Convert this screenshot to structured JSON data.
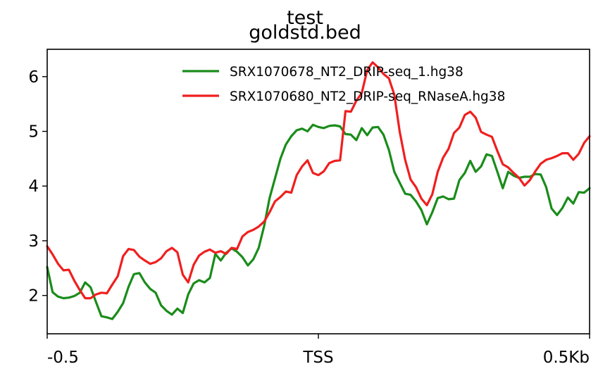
{
  "header": {
    "title": "test",
    "subtitle": "goldstd.bed"
  },
  "colors": {
    "series_1": "#1a8c1a",
    "series_2": "#f01f1f"
  },
  "chart_data": {
    "type": "line",
    "title": "test",
    "subtitle": "goldstd.bed",
    "xlabel": "",
    "ylabel": "",
    "xlim": [
      -0.5,
      0.5
    ],
    "ylim": [
      1.3,
      6.5
    ],
    "xticks": [
      {
        "value": -0.5,
        "label": "-0.5"
      },
      {
        "value": 0.0,
        "label": "TSS"
      },
      {
        "value": 0.5,
        "label": "0.5Kb"
      }
    ],
    "yticks": [
      2,
      3,
      4,
      5,
      6
    ],
    "grid": false,
    "legend": "top-right",
    "series": [
      {
        "name": "SRX1070678_NT2_DRIP-seq_1.hg38",
        "color": "#1a8c1a",
        "x": [
          -0.5,
          -0.49,
          -0.48,
          -0.47,
          -0.46,
          -0.45,
          -0.44,
          -0.43,
          -0.42,
          -0.41,
          -0.4,
          -0.39,
          -0.38,
          -0.37,
          -0.36,
          -0.35,
          -0.34,
          -0.33,
          -0.32,
          -0.31,
          -0.3,
          -0.29,
          -0.28,
          -0.27,
          -0.26,
          -0.25,
          -0.24,
          -0.23,
          -0.22,
          -0.21,
          -0.2,
          -0.19,
          -0.18,
          -0.17,
          -0.16,
          -0.15,
          -0.14,
          -0.13,
          -0.12,
          -0.11,
          -0.1,
          -0.09,
          -0.08,
          -0.07,
          -0.06,
          -0.05,
          -0.04,
          -0.03,
          -0.02,
          -0.01,
          0.0,
          0.01,
          0.02,
          0.03,
          0.04,
          0.05,
          0.06,
          0.07,
          0.08,
          0.09,
          0.1,
          0.11,
          0.12,
          0.13,
          0.14,
          0.15,
          0.16,
          0.17,
          0.18,
          0.19,
          0.2,
          0.21,
          0.22,
          0.23,
          0.24,
          0.25,
          0.26,
          0.27,
          0.28,
          0.29,
          0.3,
          0.31,
          0.32,
          0.33,
          0.34,
          0.35,
          0.36,
          0.37,
          0.38,
          0.39,
          0.4,
          0.41,
          0.42,
          0.43,
          0.44,
          0.45,
          0.46,
          0.47,
          0.48,
          0.49,
          0.5
        ],
        "y": [
          2.52,
          2.06,
          1.98,
          1.95,
          1.96,
          1.99,
          2.05,
          2.24,
          2.15,
          1.88,
          1.62,
          1.6,
          1.57,
          1.7,
          1.86,
          2.16,
          2.39,
          2.41,
          2.24,
          2.12,
          2.05,
          1.82,
          1.72,
          1.65,
          1.76,
          1.68,
          2.02,
          2.22,
          2.28,
          2.24,
          2.32,
          2.76,
          2.64,
          2.78,
          2.86,
          2.8,
          2.7,
          2.55,
          2.66,
          2.87,
          3.27,
          3.78,
          4.14,
          4.5,
          4.76,
          4.91,
          5.02,
          5.05,
          5.0,
          5.12,
          5.08,
          5.06,
          5.1,
          5.11,
          5.09,
          4.95,
          4.94,
          4.84,
          5.06,
          4.93,
          5.07,
          5.08,
          4.94,
          4.66,
          4.26,
          4.06,
          3.86,
          3.84,
          3.72,
          3.56,
          3.3,
          3.52,
          3.78,
          3.81,
          3.76,
          3.77,
          4.11,
          4.24,
          4.46,
          4.26,
          4.36,
          4.58,
          4.55,
          4.26,
          3.96,
          4.26,
          4.19,
          4.15,
          4.17,
          4.17,
          4.22,
          4.21,
          3.98,
          3.59,
          3.47,
          3.6,
          3.79,
          3.68,
          3.89,
          3.88,
          3.96
        ]
      },
      {
        "name": "SRX1070680_NT2_DRIP-seq_RNaseA.hg38",
        "color": "#f01f1f",
        "x": [
          -0.5,
          -0.49,
          -0.48,
          -0.47,
          -0.46,
          -0.45,
          -0.44,
          -0.43,
          -0.42,
          -0.41,
          -0.4,
          -0.39,
          -0.38,
          -0.37,
          -0.36,
          -0.35,
          -0.34,
          -0.33,
          -0.32,
          -0.31,
          -0.3,
          -0.29,
          -0.28,
          -0.27,
          -0.26,
          -0.25,
          -0.24,
          -0.23,
          -0.22,
          -0.21,
          -0.2,
          -0.19,
          -0.18,
          -0.17,
          -0.16,
          -0.15,
          -0.14,
          -0.13,
          -0.12,
          -0.11,
          -0.1,
          -0.09,
          -0.08,
          -0.07,
          -0.06,
          -0.05,
          -0.04,
          -0.03,
          -0.02,
          -0.01,
          0.0,
          0.01,
          0.02,
          0.03,
          0.04,
          0.05,
          0.06,
          0.07,
          0.08,
          0.09,
          0.1,
          0.11,
          0.12,
          0.13,
          0.14,
          0.15,
          0.16,
          0.17,
          0.18,
          0.19,
          0.2,
          0.21,
          0.22,
          0.23,
          0.24,
          0.25,
          0.26,
          0.27,
          0.28,
          0.29,
          0.3,
          0.31,
          0.32,
          0.33,
          0.34,
          0.35,
          0.36,
          0.37,
          0.38,
          0.39,
          0.4,
          0.41,
          0.42,
          0.43,
          0.44,
          0.45,
          0.46,
          0.47,
          0.48,
          0.49,
          0.5
        ],
        "y": [
          2.9,
          2.75,
          2.58,
          2.46,
          2.47,
          2.27,
          2.1,
          1.95,
          1.95,
          2.02,
          2.05,
          2.04,
          2.2,
          2.35,
          2.72,
          2.85,
          2.83,
          2.71,
          2.64,
          2.58,
          2.61,
          2.68,
          2.81,
          2.87,
          2.79,
          2.38,
          2.24,
          2.56,
          2.73,
          2.8,
          2.84,
          2.78,
          2.81,
          2.76,
          2.87,
          2.85,
          3.08,
          3.16,
          3.2,
          3.26,
          3.35,
          3.52,
          3.72,
          3.8,
          3.9,
          3.88,
          4.2,
          4.36,
          4.47,
          4.24,
          4.2,
          4.27,
          4.42,
          4.46,
          4.47,
          5.37,
          5.36,
          5.56,
          5.7,
          6.12,
          6.26,
          6.17,
          6.05,
          5.97,
          5.67,
          4.99,
          4.48,
          4.12,
          3.98,
          3.77,
          3.65,
          3.85,
          4.26,
          4.52,
          4.68,
          4.97,
          5.07,
          5.3,
          5.36,
          5.25,
          4.99,
          4.94,
          4.9,
          4.64,
          4.4,
          4.34,
          4.24,
          4.15,
          4.01,
          4.11,
          4.27,
          4.41,
          4.48,
          4.51,
          4.55,
          4.6,
          4.6,
          4.48,
          4.59,
          4.79,
          4.91
        ]
      }
    ]
  }
}
